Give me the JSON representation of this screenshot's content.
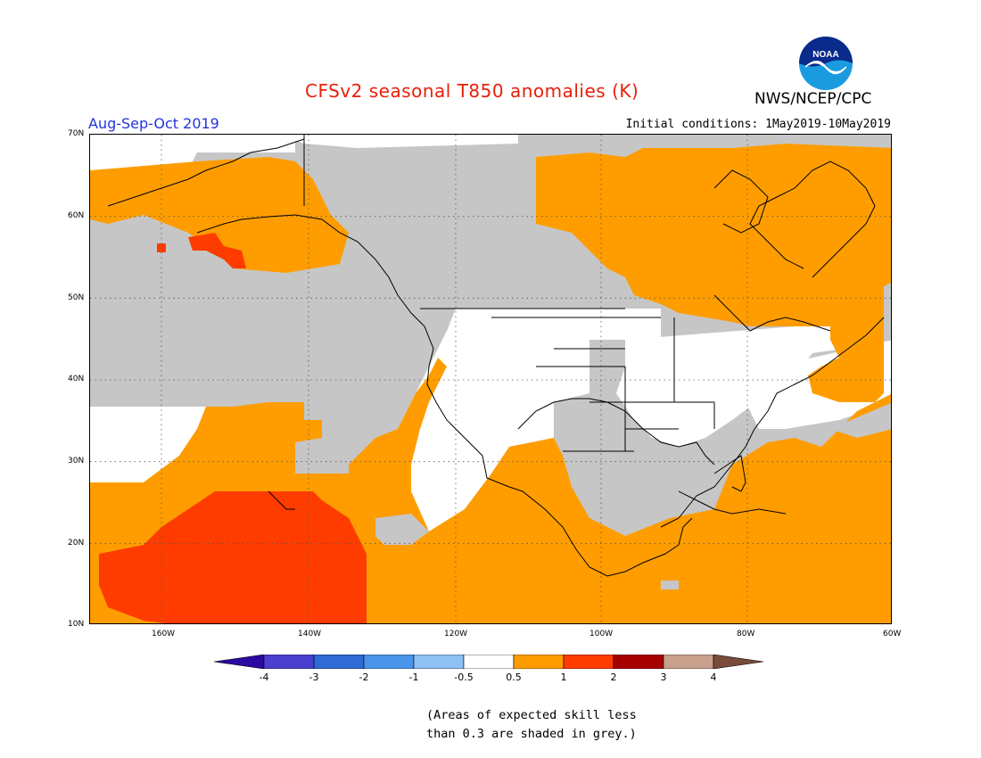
{
  "header": {
    "title": "CFSv2 seasonal T850 anomalies (K)",
    "org": "NWS/NCEP/CPC",
    "season": "Aug-Sep-Oct 2019",
    "initial_conditions": "Initial conditions: 1May2019-10May2019",
    "logo_text": "NOAA"
  },
  "map": {
    "lat_labels": [
      "70N",
      "60N",
      "50N",
      "40N",
      "30N",
      "20N",
      "10N"
    ],
    "lon_labels": [
      "160W",
      "140W",
      "120W",
      "100W",
      "80W",
      "60W"
    ]
  },
  "colorbar": {
    "labels": [
      "-4",
      "-3",
      "-2",
      "-1",
      "-0.5",
      "0.5",
      "1",
      "2",
      "3",
      "4"
    ],
    "colors": [
      "#2a0aa0",
      "#4b3fcf",
      "#2f6ad6",
      "#4a94ec",
      "#8ec0f4",
      "#ffffff",
      "#ff9d00",
      "#ff3c00",
      "#a80000",
      "#c9a08c",
      "#7a4a3c"
    ]
  },
  "colors": {
    "grey_low_skill": "#c6c6c6",
    "orange_0_5_to_1": "#ff9d00",
    "red_1_to_2": "#ff3c00"
  },
  "note": {
    "line1": "(Areas of expected skill less",
    "line2": "than 0.3 are shaded in grey.)"
  }
}
